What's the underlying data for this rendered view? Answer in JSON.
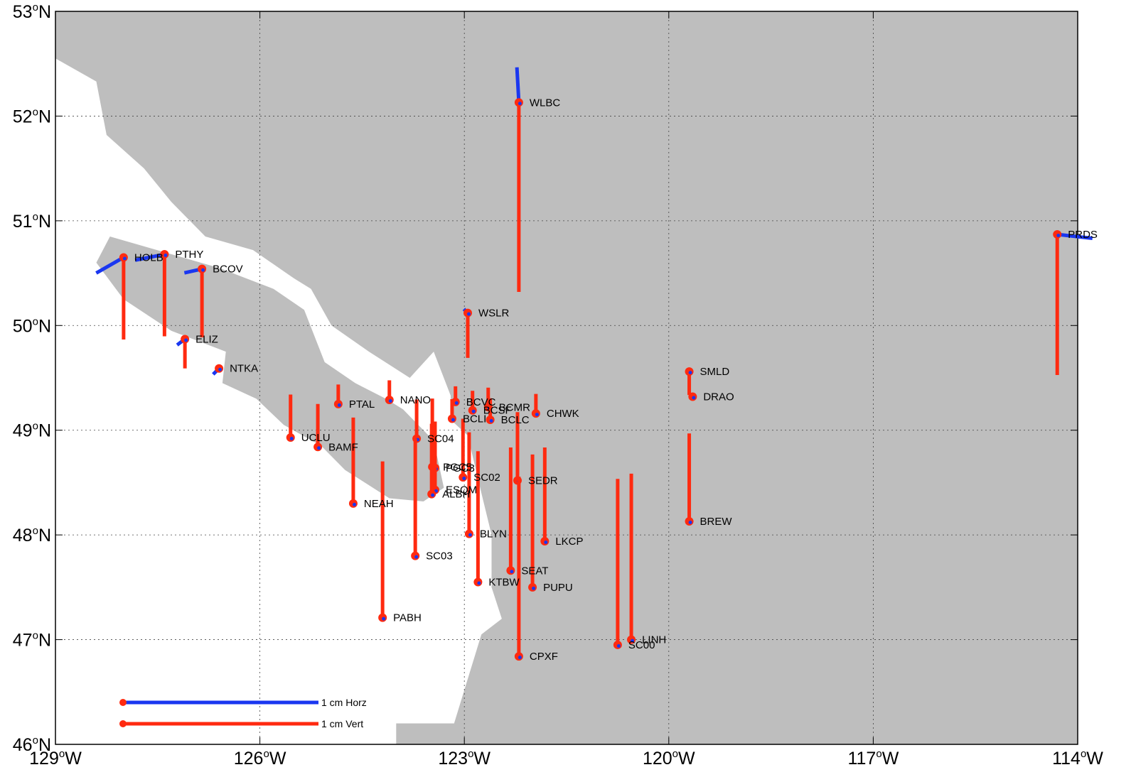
{
  "map": {
    "extent": {
      "lon_min": -129,
      "lon_max": -114,
      "lat_min": 46,
      "lat_max": 53
    },
    "grid": true,
    "land_color": "#bebebe",
    "water_color": "#ffffff",
    "horz_color": "#1a37f0",
    "vert_color": "#ff2a10",
    "lon_ticks": [
      {
        "value": -129,
        "num": "129",
        "hemi": "W"
      },
      {
        "value": -126,
        "num": "126",
        "hemi": "W"
      },
      {
        "value": -123,
        "num": "123",
        "hemi": "W"
      },
      {
        "value": -120,
        "num": "120",
        "hemi": "W"
      },
      {
        "value": -117,
        "num": "117",
        "hemi": "W"
      },
      {
        "value": -114,
        "num": "114",
        "hemi": "W"
      }
    ],
    "lat_ticks": [
      {
        "value": 53,
        "num": "53",
        "hemi": "N"
      },
      {
        "value": 52,
        "num": "52",
        "hemi": "N"
      },
      {
        "value": 51,
        "num": "51",
        "hemi": "N"
      },
      {
        "value": 50,
        "num": "50",
        "hemi": "N"
      },
      {
        "value": 49,
        "num": "49",
        "hemi": "N"
      },
      {
        "value": 48,
        "num": "48",
        "hemi": "N"
      },
      {
        "value": 47,
        "num": "47",
        "hemi": "N"
      },
      {
        "value": 46,
        "num": "46",
        "hemi": "N"
      }
    ],
    "degree_symbol": "o",
    "land_polygon": [
      [
        -129,
        52.55
      ],
      [
        -128.4,
        52.33
      ],
      [
        -128.25,
        51.82
      ],
      [
        -127.7,
        51.5
      ],
      [
        -127.3,
        51.18
      ],
      [
        -126.8,
        50.85
      ],
      [
        -126.1,
        50.72
      ],
      [
        -125.5,
        50.45
      ],
      [
        -125.25,
        50.35
      ],
      [
        -124.95,
        50.0
      ],
      [
        -124.4,
        49.75
      ],
      [
        -123.8,
        49.5
      ],
      [
        -123.45,
        49.75
      ],
      [
        -123.2,
        49.33
      ],
      [
        -123.2,
        49.1
      ],
      [
        -122.95,
        48.95
      ],
      [
        -122.75,
        48.4
      ],
      [
        -122.6,
        48.0
      ],
      [
        -122.6,
        47.5
      ],
      [
        -122.45,
        47.2
      ],
      [
        -122.75,
        47.05
      ],
      [
        -123.15,
        46.2
      ],
      [
        -124.0,
        46.2
      ],
      [
        -124.0,
        46.0
      ],
      [
        -114,
        46
      ],
      [
        -114,
        53
      ],
      [
        -129,
        53
      ]
    ],
    "island_polygon": [
      [
        -128.2,
        50.85
      ],
      [
        -127.4,
        50.7
      ],
      [
        -126.6,
        50.55
      ],
      [
        -125.8,
        50.35
      ],
      [
        -125.35,
        50.15
      ],
      [
        -125.05,
        49.65
      ],
      [
        -124.6,
        49.45
      ],
      [
        -124.15,
        49.3
      ],
      [
        -123.9,
        49.2
      ],
      [
        -123.45,
        48.9
      ],
      [
        -123.3,
        48.45
      ],
      [
        -123.6,
        48.32
      ],
      [
        -124.1,
        48.35
      ],
      [
        -124.75,
        48.62
      ],
      [
        -125.1,
        48.85
      ],
      [
        -125.65,
        49.05
      ],
      [
        -126.05,
        49.3
      ],
      [
        -126.55,
        49.45
      ],
      [
        -126.5,
        49.75
      ],
      [
        -127.3,
        49.95
      ],
      [
        -128.0,
        50.25
      ],
      [
        -128.4,
        50.6
      ]
    ],
    "sites": [
      {
        "name": "WLBC",
        "lon": -122.2,
        "lat": 52.13,
        "horz": [
          -0.01,
          0.18
        ],
        "vert": -0.97
      },
      {
        "name": "PRDS",
        "lon": -114.3,
        "lat": 50.87,
        "horz": [
          0.18,
          -0.02
        ],
        "vert": -0.72
      },
      {
        "name": "HOLB",
        "lon": -128.0,
        "lat": 50.65,
        "horz": [
          -0.14,
          -0.08
        ],
        "vert": -0.42
      },
      {
        "name": "PTHY",
        "lon": -127.4,
        "lat": 50.68,
        "horz": [
          -0.15,
          -0.03
        ],
        "vert": -0.42
      },
      {
        "name": "BCOV",
        "lon": -126.85,
        "lat": 50.54,
        "horz": [
          -0.09,
          -0.02
        ],
        "vert": -0.35
      },
      {
        "name": "WSLR",
        "lon": -122.95,
        "lat": 50.12,
        "horz": [
          -0.02,
          0.02
        ],
        "vert": -0.23
      },
      {
        "name": "ELIZ",
        "lon": -127.1,
        "lat": 49.87,
        "horz": [
          -0.04,
          -0.03
        ],
        "vert": -0.15
      },
      {
        "name": "NTKA",
        "lon": -126.6,
        "lat": 49.59,
        "horz": [
          -0.03,
          -0.03
        ],
        "vert": -0.02
      },
      {
        "name": "SMLD",
        "lon": -119.7,
        "lat": 49.56,
        "horz": [
          0.0,
          0.0
        ],
        "vert": -0.12
      },
      {
        "name": "DRAO",
        "lon": -119.65,
        "lat": 49.32,
        "horz": [
          0.0,
          0.0
        ],
        "vert": 0.0
      },
      {
        "name": "PTAL",
        "lon": -124.85,
        "lat": 49.25,
        "horz": [
          0.0,
          0.0
        ],
        "vert": 0.1
      },
      {
        "name": "NANO",
        "lon": -124.1,
        "lat": 49.29,
        "horz": [
          0.0,
          0.0
        ],
        "vert": 0.1
      },
      {
        "name": "BCVC",
        "lon": -123.13,
        "lat": 49.27,
        "horz": [
          0.0,
          0.0
        ],
        "vert": 0.08
      },
      {
        "name": "BCMR",
        "lon": -122.65,
        "lat": 49.22,
        "horz": [
          0.0,
          0.0
        ],
        "vert": 0.1
      },
      {
        "name": "BCSF",
        "lon": -122.88,
        "lat": 49.19,
        "horz": [
          0.0,
          0.0
        ],
        "vert": 0.1
      },
      {
        "name": "BCLC",
        "lon": -122.62,
        "lat": 49.1,
        "horz": [
          0.0,
          0.0
        ],
        "vert": 0.11
      },
      {
        "name": "BCLI",
        "lon": -123.18,
        "lat": 49.11,
        "horz": [
          0.0,
          0.0
        ],
        "vert": 0.1
      },
      {
        "name": "CHWK",
        "lon": -121.95,
        "lat": 49.16,
        "horz": [
          0.0,
          0.0
        ],
        "vert": 0.1
      },
      {
        "name": "UCLU",
        "lon": -125.55,
        "lat": 48.93,
        "horz": [
          0.0,
          0.0
        ],
        "vert": 0.22
      },
      {
        "name": "BAMF",
        "lon": -125.15,
        "lat": 48.84,
        "horz": [
          0.0,
          0.0
        ],
        "vert": 0.22
      },
      {
        "name": "SC04",
        "lon": -123.7,
        "lat": 48.92,
        "horz": [
          0.0,
          0.0
        ],
        "vert": 0.2
      },
      {
        "name": "PGC5",
        "lon": -123.47,
        "lat": 48.65,
        "horz": [
          0.0,
          0.0
        ],
        "vert": 0.35
      },
      {
        "name": "PGC3",
        "lon": -123.43,
        "lat": 48.64,
        "horz": [
          0.0,
          0.0
        ],
        "vert": 0.2
      },
      {
        "name": "SC02",
        "lon": -123.02,
        "lat": 48.55,
        "horz": [
          0.0,
          0.0
        ],
        "vert": 0.3
      },
      {
        "name": "SEDR",
        "lon": -122.22,
        "lat": 48.52,
        "horz": [
          0.0,
          0.0
        ],
        "vert": 0.35
      },
      {
        "name": "ESQM",
        "lon": -123.43,
        "lat": 48.43,
        "horz": [
          0.0,
          0.0
        ],
        "vert": 0.35
      },
      {
        "name": "ALBH",
        "lon": -123.48,
        "lat": 48.39,
        "horz": [
          0.0,
          0.0
        ],
        "vert": 0.36
      },
      {
        "name": "NEAH",
        "lon": -124.63,
        "lat": 48.3,
        "horz": [
          0.0,
          0.0
        ],
        "vert": 0.44
      },
      {
        "name": "BREW",
        "lon": -119.7,
        "lat": 48.13,
        "horz": [
          0.0,
          0.0
        ],
        "vert": 0.45
      },
      {
        "name": "BLYN",
        "lon": -122.93,
        "lat": 48.01,
        "horz": [
          0.0,
          0.0
        ],
        "vert": 0.52
      },
      {
        "name": "LKCP",
        "lon": -121.82,
        "lat": 47.94,
        "horz": [
          0.0,
          0.0
        ],
        "vert": 0.48
      },
      {
        "name": "SC03",
        "lon": -123.72,
        "lat": 47.8,
        "horz": [
          0.0,
          0.0
        ],
        "vert": 0.6
      },
      {
        "name": "SEAT",
        "lon": -122.32,
        "lat": 47.66,
        "horz": [
          0.0,
          0.0
        ],
        "vert": 0.63
      },
      {
        "name": "KTBW",
        "lon": -122.8,
        "lat": 47.55,
        "horz": [
          0.0,
          0.0
        ],
        "vert": 0.67
      },
      {
        "name": "PUPU",
        "lon": -122.0,
        "lat": 47.5,
        "horz": [
          0.0,
          0.0
        ],
        "vert": 0.68
      },
      {
        "name": "PABH",
        "lon": -124.2,
        "lat": 47.21,
        "horz": [
          0.0,
          0.0
        ],
        "vert": 0.8
      },
      {
        "name": "LINH",
        "lon": -120.55,
        "lat": 47.0,
        "horz": [
          0.0,
          0.0
        ],
        "vert": 0.85
      },
      {
        "name": "SC00",
        "lon": -120.75,
        "lat": 46.95,
        "horz": [
          0.0,
          0.0
        ],
        "vert": 0.85
      },
      {
        "name": "CPXF",
        "lon": -122.2,
        "lat": 46.84,
        "horz": [
          0.0,
          0.0
        ],
        "vert": 0.92
      }
    ]
  },
  "legend": {
    "horz_label": "1 cm Horz",
    "vert_label": "1 cm Vert"
  }
}
